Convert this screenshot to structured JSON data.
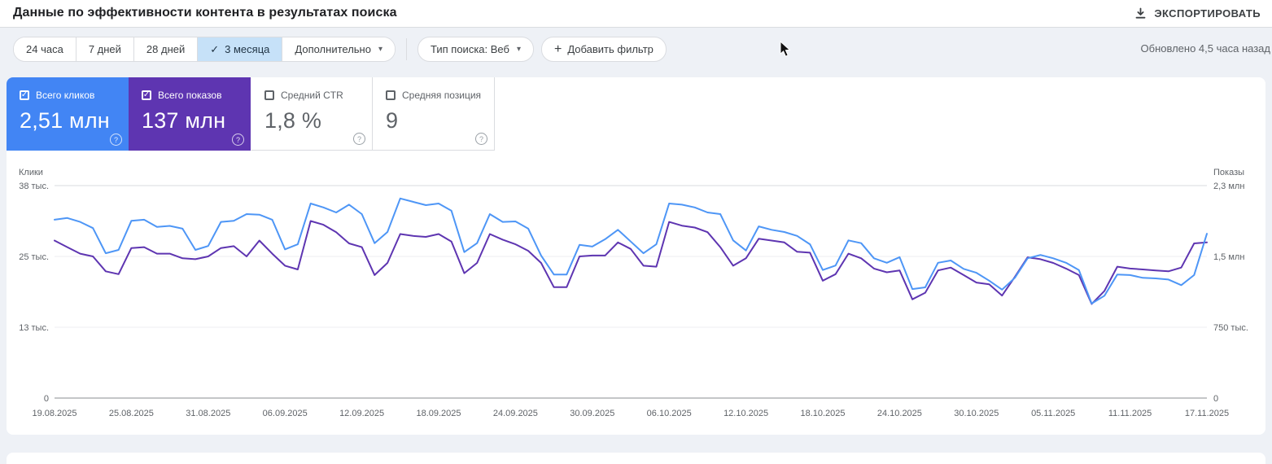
{
  "header": {
    "title": "Данные по эффективности контента в результатах поиска",
    "export_label": "ЭКСПОРТИРОВАТЬ"
  },
  "toolbar": {
    "date_chips": [
      {
        "label": "24 часа",
        "selected": false
      },
      {
        "label": "7 дней",
        "selected": false
      },
      {
        "label": "28 дней",
        "selected": false
      },
      {
        "label": "3 месяца",
        "selected": true
      },
      {
        "label": "Дополнительно",
        "selected": false,
        "has_dropdown": true
      }
    ],
    "search_type_label": "Тип поиска: Веб",
    "add_filter_label": "Добавить фильтр",
    "updated_status": "Обновлено 4,5 часа назад"
  },
  "icons": {
    "check": "✓",
    "dropdown_arrow": "▾",
    "plus": "+",
    "help": "?"
  },
  "metric_cards": [
    {
      "label": "Всего кликов",
      "value": "2,51 млн",
      "checked": true,
      "bg_color": "#4285f4"
    },
    {
      "label": "Всего показов",
      "value": "137 млн",
      "checked": true,
      "bg_color": "#5e35b1"
    },
    {
      "label": "Средний CTR",
      "value": "1,8 %",
      "checked": false,
      "bg_color": "#ffffff"
    },
    {
      "label": "Средняя позиция",
      "value": "9",
      "checked": false,
      "bg_color": "#ffffff"
    }
  ],
  "chart_data": {
    "type": "line",
    "title": "",
    "grid": "horizontal",
    "legend_position": "none",
    "left_axis": {
      "title": "Клики",
      "ticks": [
        "38 тыс.",
        "25 тыс.",
        "13 тыс.",
        "0"
      ],
      "max": 38,
      "unit": "thousand clicks"
    },
    "right_axis": {
      "title": "Показы",
      "ticks": [
        "2,3 млн",
        "1,5 млн",
        "750 тыс.",
        "0"
      ],
      "max": 2.28,
      "unit": "million impressions"
    },
    "x_labels": [
      "19.08.2025",
      "25.08.2025",
      "31.08.2025",
      "06.09.2025",
      "12.09.2025",
      "18.09.2025",
      "24.09.2025",
      "30.09.2025",
      "06.10.2025",
      "12.10.2025",
      "18.10.2025",
      "24.10.2025",
      "30.10.2025",
      "05.11.2025",
      "11.11.2025",
      "17.11.2025"
    ],
    "x_label_step_days": 6,
    "days_total": 91,
    "series": [
      {
        "name": "Клики",
        "axis": "left",
        "unit": "тыс.",
        "color": "#4e96f6",
        "values": [
          31.9,
          32.2,
          31.5,
          30.4,
          25.9,
          26.5,
          31.7,
          31.9,
          30.6,
          30.8,
          30.3,
          26.5,
          27.2,
          31.5,
          31.7,
          32.9,
          32.8,
          31.9,
          26.6,
          27.5,
          34.8,
          34.1,
          33.2,
          34.6,
          32.9,
          27.7,
          29.7,
          35.7,
          35.1,
          34.5,
          34.8,
          33.5,
          26.1,
          27.7,
          32.9,
          31.5,
          31.6,
          30.3,
          25.5,
          22.1,
          22.1,
          27.4,
          27.1,
          28.4,
          30.1,
          28.0,
          25.9,
          27.5,
          34.8,
          34.6,
          34.1,
          33.2,
          32.9,
          28.2,
          26.4,
          30.7,
          30.1,
          29.7,
          29.0,
          27.5,
          22.9,
          23.7,
          28.2,
          27.7,
          25.0,
          24.2,
          25.2,
          19.5,
          19.8,
          24.2,
          24.6,
          23.1,
          22.4,
          21.0,
          19.4,
          21.5,
          25.0,
          25.6,
          25.0,
          24.2,
          22.9,
          16.9,
          18.3,
          22.1,
          22.0,
          21.5,
          21.4,
          21.2,
          20.2,
          22.0,
          29.4
        ]
      },
      {
        "name": "Показы",
        "axis": "right",
        "unit": "млн",
        "color": "#5e35b1",
        "values": [
          1.69,
          1.62,
          1.55,
          1.52,
          1.36,
          1.33,
          1.61,
          1.62,
          1.55,
          1.55,
          1.5,
          1.49,
          1.52,
          1.61,
          1.63,
          1.52,
          1.69,
          1.55,
          1.42,
          1.38,
          1.9,
          1.86,
          1.78,
          1.66,
          1.62,
          1.32,
          1.45,
          1.76,
          1.74,
          1.73,
          1.76,
          1.68,
          1.34,
          1.45,
          1.76,
          1.7,
          1.65,
          1.58,
          1.45,
          1.19,
          1.19,
          1.52,
          1.53,
          1.53,
          1.67,
          1.6,
          1.42,
          1.41,
          1.89,
          1.85,
          1.83,
          1.78,
          1.62,
          1.42,
          1.5,
          1.71,
          1.69,
          1.67,
          1.57,
          1.56,
          1.26,
          1.33,
          1.55,
          1.5,
          1.39,
          1.35,
          1.37,
          1.06,
          1.13,
          1.37,
          1.4,
          1.32,
          1.24,
          1.22,
          1.1,
          1.3,
          1.51,
          1.49,
          1.45,
          1.39,
          1.32,
          1.01,
          1.15,
          1.41,
          1.39,
          1.38,
          1.37,
          1.36,
          1.4,
          1.66,
          1.67
        ]
      }
    ]
  }
}
